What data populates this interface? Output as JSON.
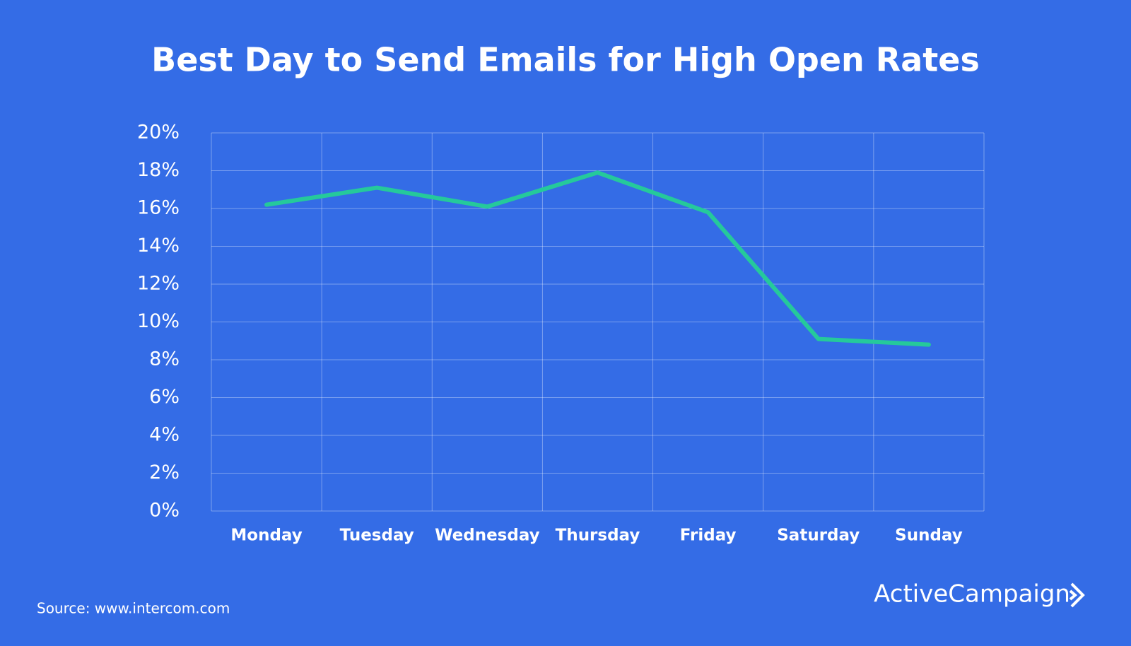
{
  "chart_data": {
    "type": "line",
    "title": "Best Day to Send Emails for High Open Rates",
    "categories": [
      "Monday",
      "Tuesday",
      "Wednesday",
      "Thursday",
      "Friday",
      "Saturday",
      "Sunday"
    ],
    "values": [
      16.2,
      17.1,
      16.1,
      17.9,
      15.8,
      9.1,
      8.8
    ],
    "color": "#25c99b",
    "ylim": [
      0,
      20
    ],
    "yticks": [
      {
        "value": 0,
        "label": "0%"
      },
      {
        "value": 2,
        "label": "2%"
      },
      {
        "value": 4,
        "label": "4%"
      },
      {
        "value": 6,
        "label": "6%"
      },
      {
        "value": 8,
        "label": "8%"
      },
      {
        "value": 10,
        "label": "10%"
      },
      {
        "value": 12,
        "label": "12%"
      },
      {
        "value": 14,
        "label": "14%"
      },
      {
        "value": 16,
        "label": "16%"
      },
      {
        "value": 18,
        "label": "18%"
      },
      {
        "value": 20,
        "label": "20%"
      }
    ],
    "grid": true,
    "source": "Source: www.intercom.com",
    "brand": "ActiveCampaign"
  }
}
